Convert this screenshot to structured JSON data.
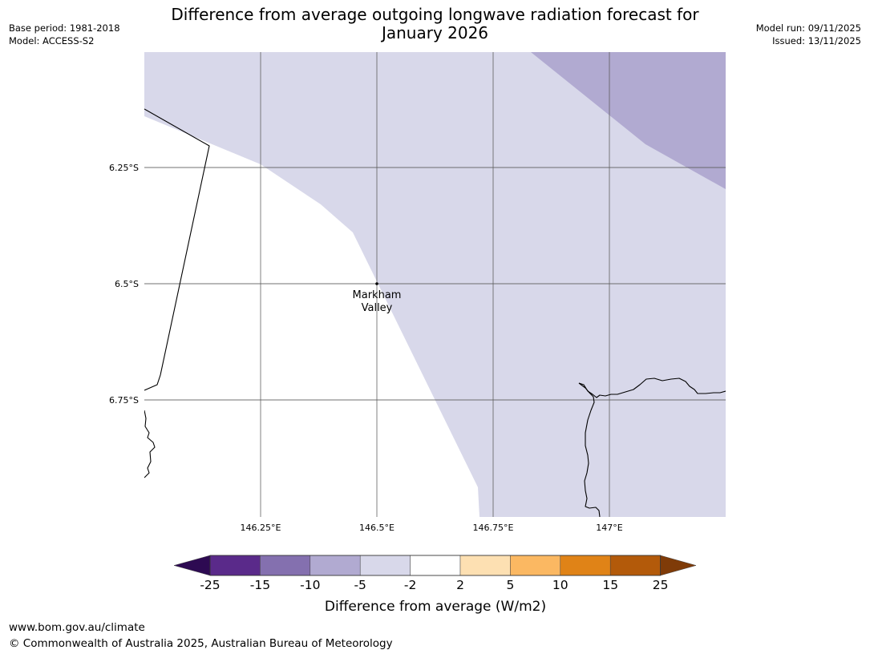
{
  "title": {
    "line1": "Difference from average outgoing longwave radiation forecast for",
    "line2": "January 2026"
  },
  "meta_left": {
    "base_period": "Base period: 1981-2018",
    "model": "Model: ACCESS-S2"
  },
  "meta_right": {
    "model_run": "Model run: 09/11/2025",
    "issued": "Issued: 13/11/2025"
  },
  "map": {
    "lon_labels": [
      "146.25°E",
      "146.5°E",
      "146.75°E",
      "147°E"
    ],
    "lat_labels": [
      "6.25°S",
      "6.5°S",
      "6.75°S"
    ],
    "place_label_line1": "Markham",
    "place_label_line2": "Valley",
    "region_colors": {
      "category_minus5_to_minus2": "#d8d8ea",
      "category_minus10_to_minus5": "#b1aad1",
      "neutral": "#ffffff"
    },
    "grid_color": "#555555",
    "coastline_color": "#000000"
  },
  "colorbar": {
    "label": "Difference from average (W/m2)",
    "ticks": [
      "-25",
      "-15",
      "-10",
      "-5",
      "-2",
      "2",
      "5",
      "10",
      "15",
      "25"
    ],
    "colors": [
      "#2d0a52",
      "#5a2a8a",
      "#8470af",
      "#b1aad1",
      "#d8d8ea",
      "#ffffff",
      "#fde0b2",
      "#fbb862",
      "#e08317",
      "#b35a0a",
      "#7f3b08"
    ]
  },
  "footer": {
    "url": "www.bom.gov.au/climate",
    "copyright": "© Commonwealth of Australia 2025, Australian Bureau of Meteorology"
  }
}
